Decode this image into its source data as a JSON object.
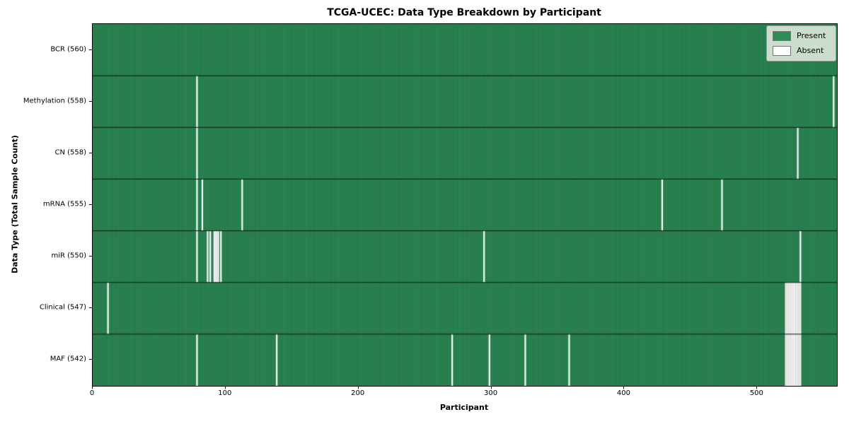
{
  "title": "TCGA-UCEC: Data Type Breakdown by Participant",
  "chart_data": {
    "type": "heatmap",
    "title": "TCGA-UCEC: Data Type Breakdown by Participant",
    "xlabel": "Participant",
    "ylabel": "Data Type (Total Sample Count)",
    "n_participants": 560,
    "x_range": [
      0,
      560
    ],
    "xticks": [
      "0",
      "100",
      "200",
      "300",
      "400",
      "500"
    ],
    "xtick_values": [
      0,
      100,
      200,
      300,
      400,
      500
    ],
    "grid": false,
    "legend": {
      "position": "upper right",
      "present_label": "Present",
      "absent_label": "Absent"
    },
    "colors": {
      "present": "#2e8b57",
      "present_edge": "#14502e",
      "absent": "#ffffff",
      "absent_edge": "#8f8f8f",
      "row_separator": "#141414"
    },
    "rows": [
      {
        "label": "BCR (560)",
        "name": "BCR",
        "present_count": 560,
        "absent": []
      },
      {
        "label": "Methylation (558)",
        "name": "Methylation",
        "present_count": 558,
        "absent": [
          78,
          557
        ]
      },
      {
        "label": "CN (558)",
        "name": "CN",
        "present_count": 558,
        "absent": [
          78,
          530
        ]
      },
      {
        "label": "mRNA (555)",
        "name": "mRNA",
        "present_count": 555,
        "absent": [
          78,
          82,
          112,
          428,
          473
        ]
      },
      {
        "label": "miR (550)",
        "name": "miR",
        "present_count": 550,
        "absent": [
          78,
          86,
          88,
          91,
          92,
          93,
          94,
          96,
          294,
          532
        ]
      },
      {
        "label": "Clinical (547)",
        "name": "Clinical",
        "present_count": 547,
        "absent": [
          11,
          521,
          522,
          523,
          524,
          525,
          526,
          527,
          528,
          529,
          530,
          531,
          532
        ]
      },
      {
        "label": "MAF (542)",
        "name": "MAF",
        "present_count": 542,
        "absent": [
          78,
          138,
          270,
          298,
          325,
          358,
          521,
          522,
          523,
          524,
          525,
          526,
          527,
          528,
          529,
          530,
          531,
          532
        ]
      }
    ]
  }
}
